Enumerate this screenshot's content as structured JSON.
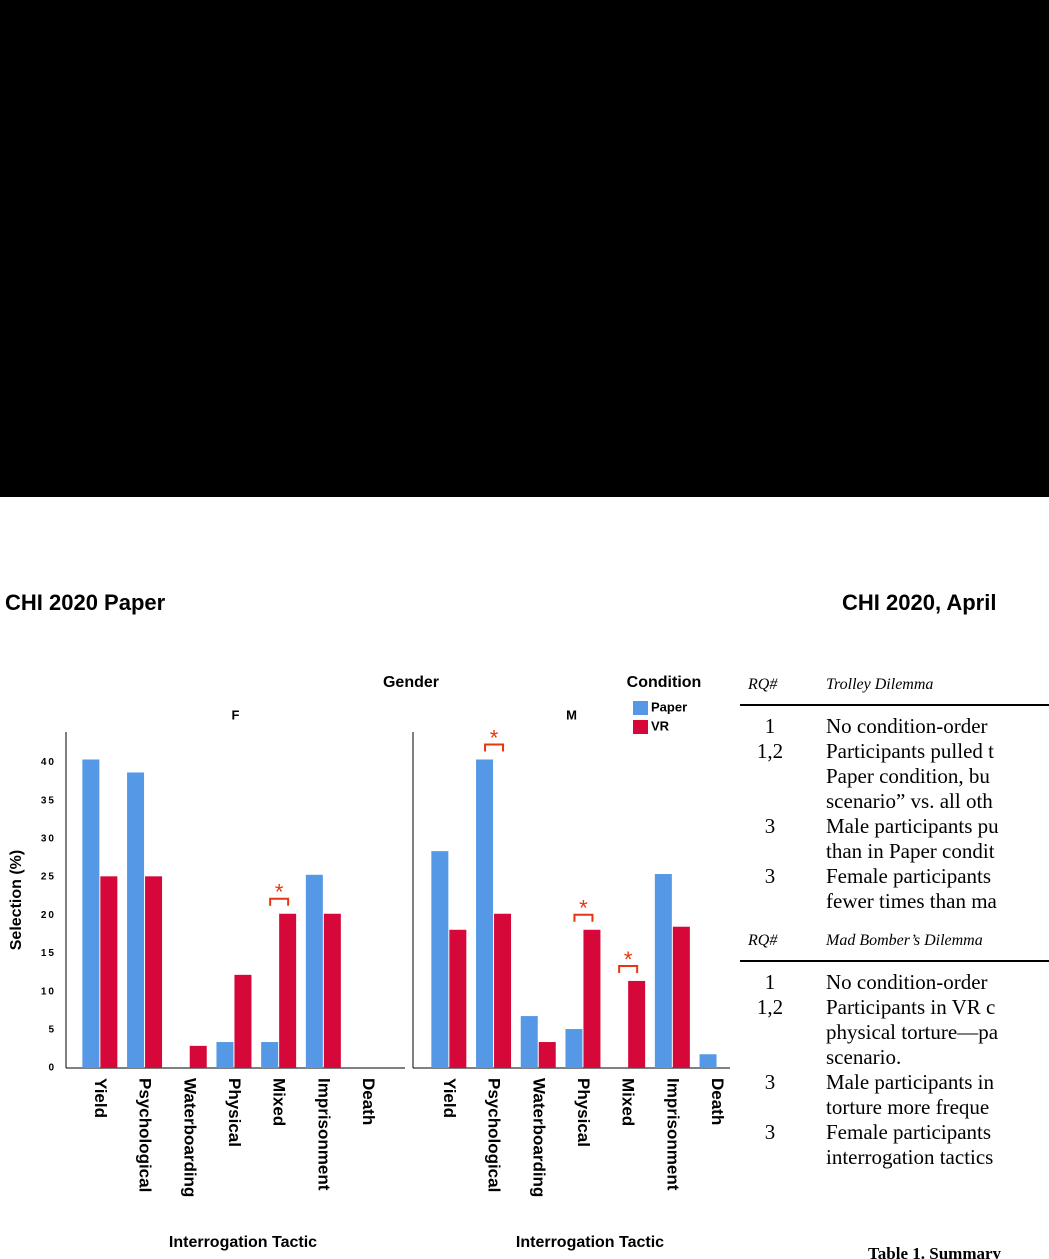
{
  "header": {
    "left": "CHI 2020 Paper",
    "right": "CHI 2020, April"
  },
  "chart_data": {
    "type": "bar",
    "title": "Gender",
    "legend_title": "Condition",
    "ylabel": "Selection (%)",
    "xlabel": "Interrogation Tactic",
    "categories": [
      "Yield",
      "Psychological",
      "Waterboarding",
      "Physical",
      "Mixed",
      "Imprisonment",
      "Death"
    ],
    "series": [
      {
        "name": "Paper",
        "color": "#5599e6"
      },
      {
        "name": "VR",
        "color": "#d6083a"
      }
    ],
    "ylim": [
      0,
      44
    ],
    "yticks": [
      0,
      5,
      10,
      15,
      20,
      25,
      30,
      35,
      40
    ],
    "panels": [
      {
        "label": "F",
        "series": [
          {
            "values": [
              40.4,
              38.7,
              0,
              3.4,
              3.4,
              25.3,
              0
            ]
          },
          {
            "values": [
              25.1,
              25.1,
              2.9,
              12.2,
              20.2,
              20.2,
              0
            ]
          }
        ],
        "annotations": [
          {
            "text": "*",
            "category": "Mixed"
          }
        ]
      },
      {
        "label": "M",
        "series": [
          {
            "values": [
              28.4,
              40.4,
              6.8,
              5.1,
              0,
              25.4,
              1.8
            ]
          },
          {
            "values": [
              18.1,
              20.2,
              3.4,
              18.1,
              11.4,
              18.5,
              0
            ]
          }
        ],
        "annotations": [
          {
            "text": "*",
            "category": "Psychological"
          },
          {
            "text": "*",
            "category": "Physical"
          },
          {
            "text": "*",
            "category": "Mixed"
          }
        ]
      }
    ]
  },
  "table": {
    "sections": [
      {
        "head": [
          "RQ#",
          "Trolley Dilemma"
        ],
        "rows": [
          {
            "rq": "1",
            "lines": [
              "No condition-order"
            ]
          },
          {
            "rq": "1,2",
            "lines": [
              "Participants pulled t",
              "Paper condition, bu",
              "scenario” vs. all oth"
            ]
          },
          {
            "rq": "3",
            "lines": [
              "Male participants pu",
              "than in Paper condit"
            ]
          },
          {
            "rq": "3",
            "lines": [
              "Female participants",
              "fewer times than ma"
            ]
          }
        ]
      },
      {
        "head": [
          "RQ#",
          "Mad Bomber’s Dilemma"
        ],
        "rows": [
          {
            "rq": "1",
            "lines": [
              "No condition-order"
            ]
          },
          {
            "rq": "1,2",
            "lines": [
              "Participants in VR c",
              "physical torture—pa",
              "scenario."
            ]
          },
          {
            "rq": "3",
            "lines": [
              "Male participants in",
              "torture more freque"
            ]
          },
          {
            "rq": "3",
            "lines": [
              "Female participants",
              "interrogation tactics"
            ]
          }
        ]
      }
    ],
    "caption": "Table 1. Summary"
  }
}
